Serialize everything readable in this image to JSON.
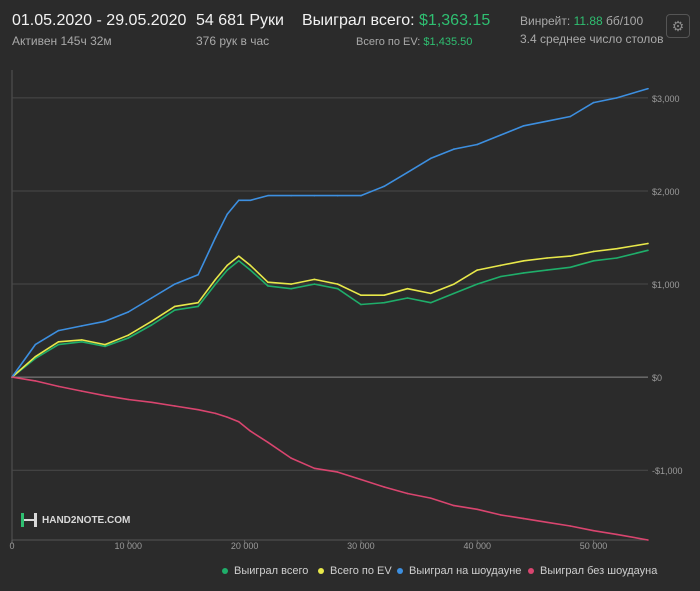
{
  "header": {
    "date_range": "01.05.2020 - 29.05.2020",
    "active_time": "Активен 145ч 32м",
    "hands_total": "54 681 Руки",
    "hands_per_hour": "376 рук в час",
    "won_total_label": "Выиграл всего:",
    "won_total_value": "$1,363.15",
    "ev_label": "Всего по EV:",
    "ev_value": "$1,435.50",
    "winrate_label": "Винрейт:",
    "winrate_value": "11.88",
    "winrate_unit": "бб/100",
    "avg_tables": "3.4 среднее число столов"
  },
  "logo": {
    "text": "HAND2NOTE.COM"
  },
  "colors": {
    "won_total": "#1fae6a",
    "ev": "#e8e84a",
    "showdown": "#3d8fe0",
    "non_showdown": "#d9456f",
    "grid": "#4a4a4a",
    "zero_line": "#8a8a8a",
    "axis_text": "#9b9b9b",
    "accent": "#2fbf71"
  },
  "icons": {
    "settings": "gear-icon"
  },
  "chart_data": {
    "type": "line",
    "x_ticks": [
      0,
      10000,
      20000,
      30000,
      40000,
      50000
    ],
    "x_tick_labels": [
      "0",
      "10 000",
      "20 000",
      "30 000",
      "40 000",
      "50 000"
    ],
    "y_ticks": [
      -1000,
      0,
      1000,
      2000,
      3000
    ],
    "y_tick_labels": [
      "-$1,000",
      "$0",
      "$1,000",
      "$2,000",
      "$3,000"
    ],
    "xlim": [
      0,
      54681
    ],
    "ylim": [
      -1750,
      3300
    ],
    "grid": "horizontal",
    "legend_position": "bottom-right",
    "x": [
      0,
      2000,
      4000,
      6000,
      8000,
      10000,
      12000,
      14000,
      16000,
      17500,
      18500,
      19500,
      20500,
      22000,
      24000,
      26000,
      28000,
      30000,
      32000,
      34000,
      36000,
      38000,
      40000,
      42000,
      44000,
      46000,
      48000,
      50000,
      52000,
      54681
    ],
    "series": [
      {
        "name": "Выиграл всего",
        "key": "won_total",
        "values": [
          0,
          200,
          350,
          380,
          330,
          420,
          560,
          720,
          760,
          1000,
          1150,
          1250,
          1150,
          980,
          950,
          1000,
          950,
          780,
          800,
          850,
          800,
          900,
          1000,
          1080,
          1120,
          1150,
          1180,
          1250,
          1280,
          1363
        ]
      },
      {
        "name": "Всего по EV",
        "key": "ev",
        "values": [
          0,
          220,
          380,
          400,
          350,
          450,
          600,
          760,
          800,
          1050,
          1200,
          1300,
          1200,
          1020,
          1000,
          1050,
          1000,
          880,
          880,
          950,
          900,
          1000,
          1150,
          1200,
          1250,
          1280,
          1300,
          1350,
          1380,
          1436
        ]
      },
      {
        "name": "Выиграл на шоудауне",
        "key": "showdown",
        "values": [
          0,
          350,
          500,
          550,
          600,
          700,
          850,
          1000,
          1100,
          1500,
          1750,
          1900,
          1900,
          1950,
          1950,
          1950,
          1950,
          1950,
          2050,
          2200,
          2350,
          2450,
          2500,
          2600,
          2700,
          2750,
          2800,
          2950,
          3000,
          3100
        ]
      },
      {
        "name": "Выиграл без шоудауна",
        "key": "non_showdown",
        "values": [
          0,
          -40,
          -100,
          -150,
          -200,
          -240,
          -270,
          -310,
          -350,
          -390,
          -430,
          -480,
          -580,
          -700,
          -870,
          -980,
          -1020,
          -1100,
          -1180,
          -1250,
          -1300,
          -1380,
          -1420,
          -1480,
          -1520,
          -1560,
          -1600,
          -1650,
          -1690,
          -1750
        ]
      }
    ]
  }
}
